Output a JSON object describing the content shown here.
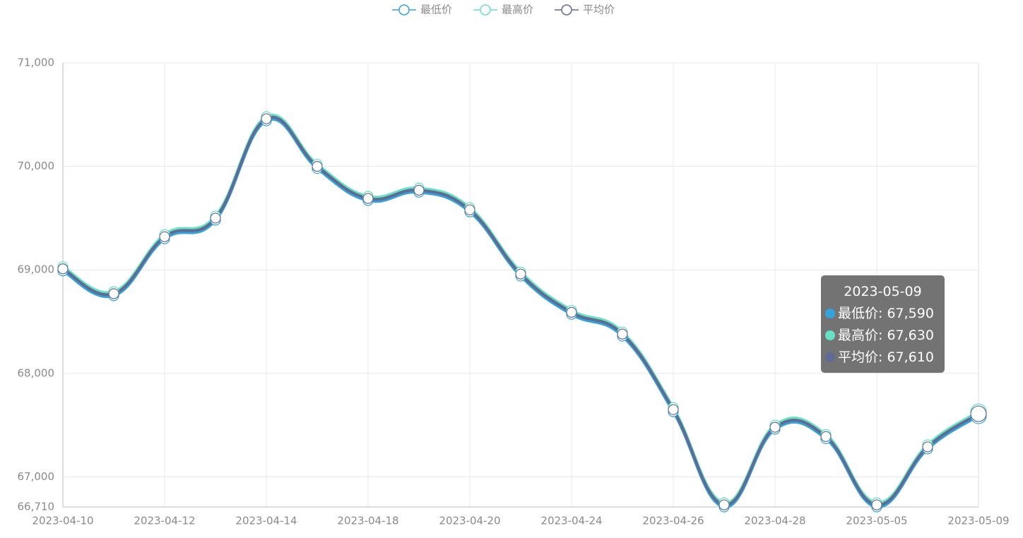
{
  "chart_data": {
    "type": "line",
    "categories": [
      "2023-04-10",
      null,
      "2023-04-12",
      null,
      "2023-04-14",
      null,
      "2023-04-18",
      null,
      "2023-04-20",
      null,
      "2023-04-24",
      null,
      "2023-04-26",
      null,
      "2023-04-28",
      null,
      "2023-05-05",
      null,
      "2023-05-09"
    ],
    "series": [
      {
        "name": "最低价",
        "color": "#37a2da",
        "values": [
          68990,
          68750,
          69300,
          69480,
          70440,
          69980,
          69670,
          69750,
          69560,
          68940,
          68570,
          68360,
          67630,
          66710,
          67460,
          67370,
          66710,
          67270,
          67590
        ]
      },
      {
        "name": "最高价",
        "color": "#67e0c3",
        "values": [
          69030,
          68790,
          69340,
          69520,
          70480,
          70020,
          69710,
          69790,
          69600,
          68980,
          68610,
          68400,
          67670,
          66750,
          67500,
          67410,
          66750,
          67310,
          67630
        ]
      },
      {
        "name": "平均价",
        "color": "#5f6b92",
        "values": [
          69010,
          68770,
          69320,
          69500,
          70460,
          70000,
          69690,
          69770,
          69580,
          68960,
          68590,
          68380,
          67650,
          66730,
          67480,
          67390,
          66730,
          67290,
          67610
        ]
      }
    ],
    "ylim": [
      66710,
      71000
    ],
    "yticks": [
      {
        "value": 66710,
        "label": "66,710"
      },
      {
        "value": 67000,
        "label": "67,000"
      },
      {
        "value": 68000,
        "label": "68,000"
      },
      {
        "value": 69000,
        "label": "69,000"
      },
      {
        "value": 70000,
        "label": "70,000"
      },
      {
        "value": 71000,
        "label": "71,000"
      }
    ],
    "grid": true,
    "legend": "top",
    "tooltip": {
      "title": "2023-05-09",
      "items": [
        "最低价: 67,590",
        "最高价: 67,630",
        "平均价: 67,610"
      ]
    }
  }
}
